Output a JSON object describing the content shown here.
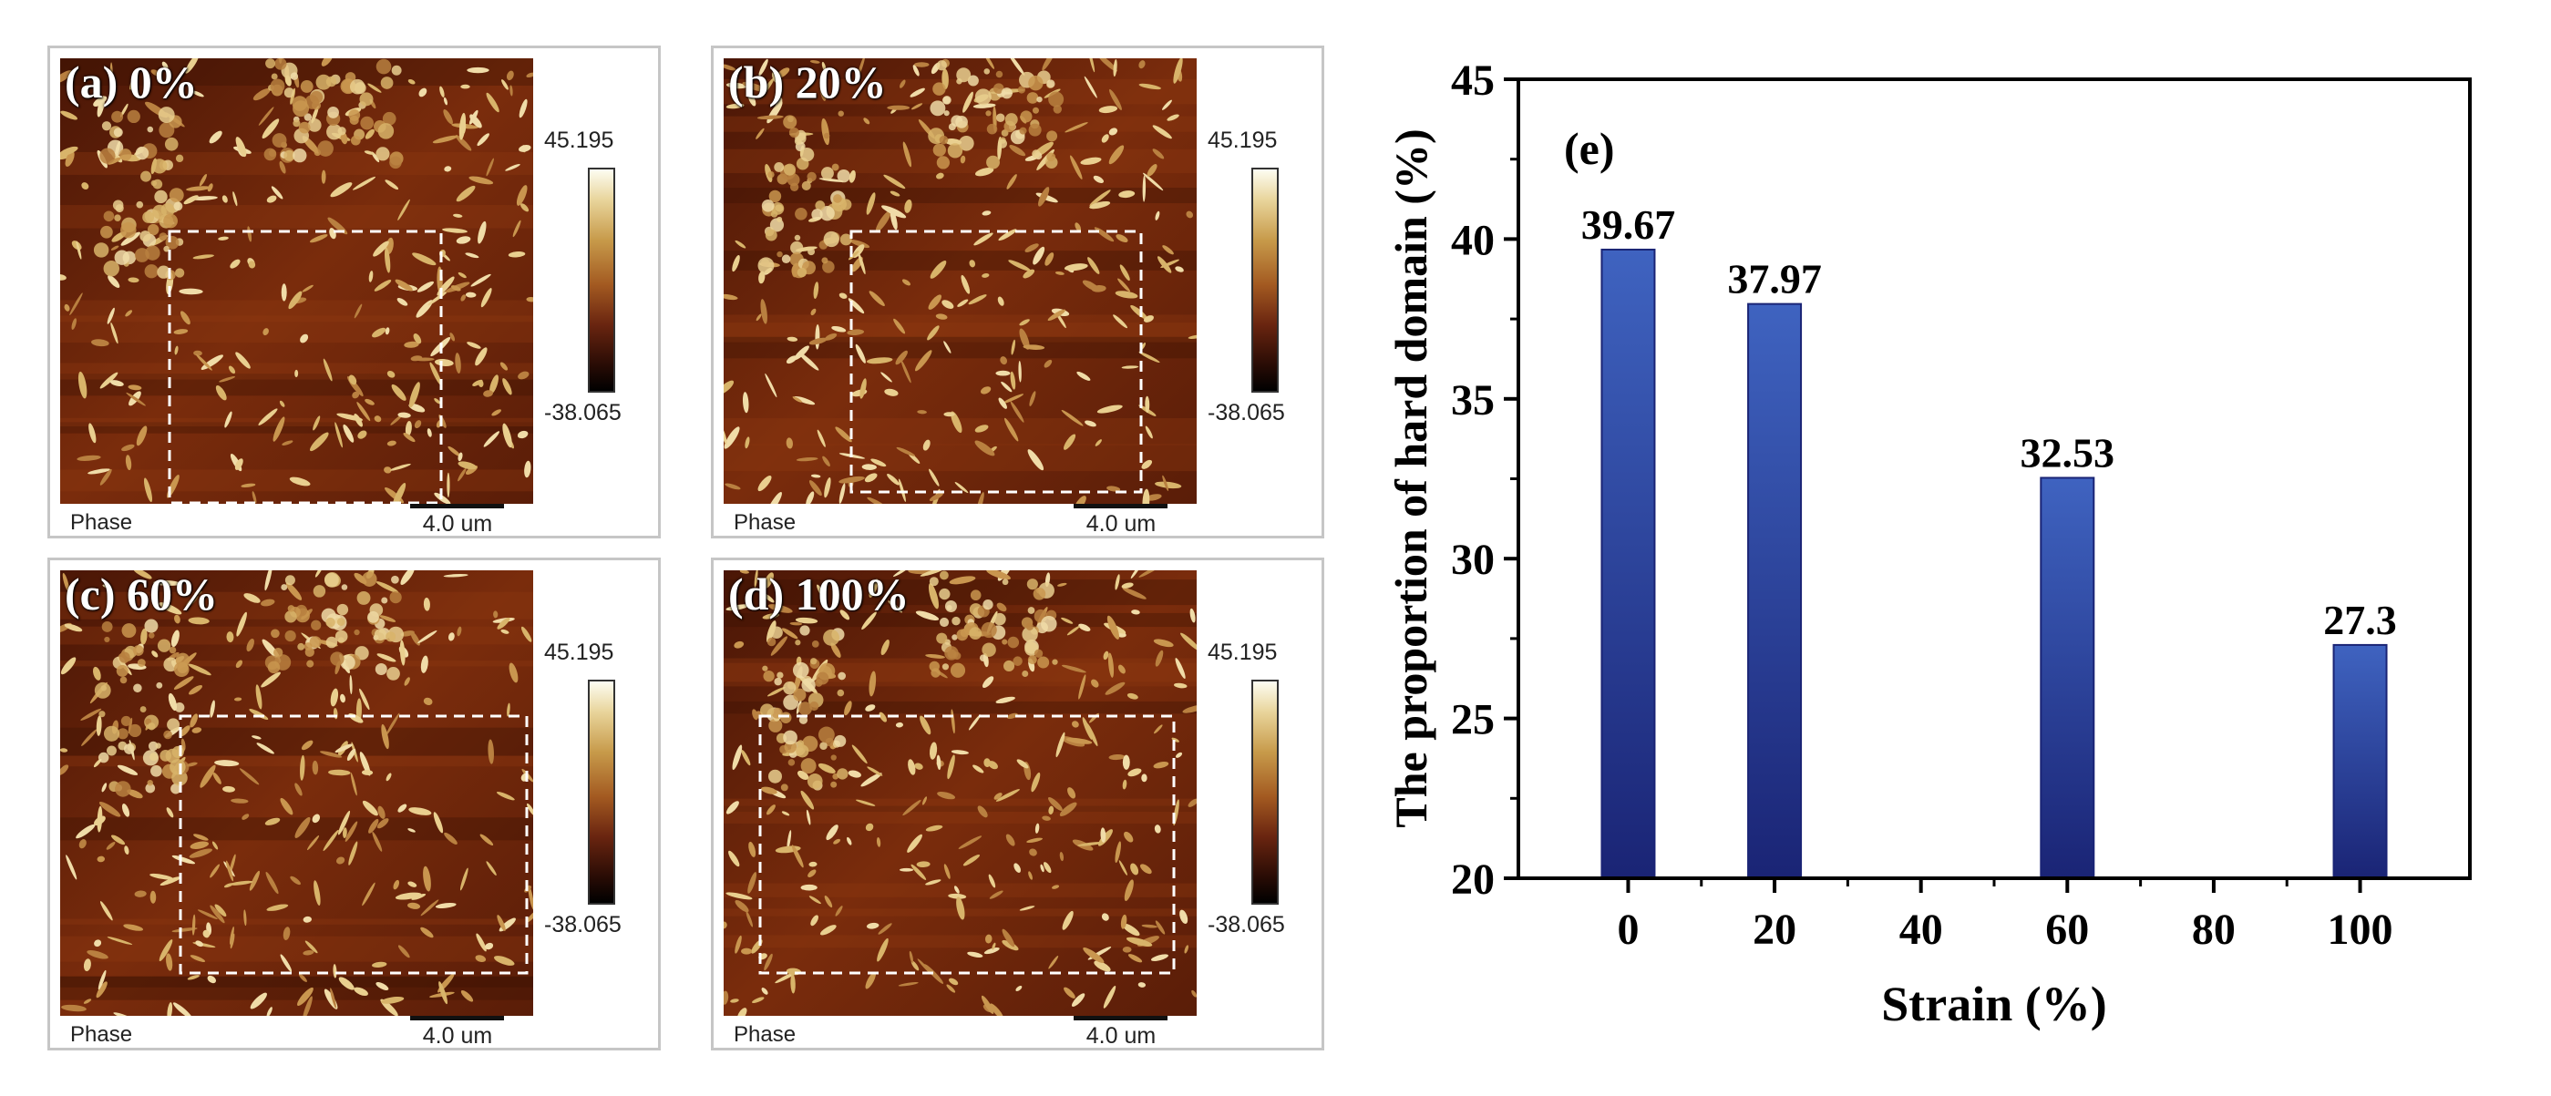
{
  "colors": {
    "bar_top": "#3f63c0",
    "bar_bottom": "#1a2475",
    "frame": "#000000",
    "panel_border": "#c6c6c6"
  },
  "afm_panels": [
    {
      "label": "(a) 0%",
      "colorbar_max": "45.195",
      "colorbar_min": "-38.065",
      "mode": "Phase",
      "scale": "4.0 um"
    },
    {
      "label": "(b) 20%",
      "colorbar_max": "45.195",
      "colorbar_min": "-38.065",
      "mode": "Phase",
      "scale": "4.0 um"
    },
    {
      "label": "(c) 60%",
      "colorbar_max": "45.195",
      "colorbar_min": "-38.065",
      "mode": "Phase",
      "scale": "4.0 um"
    },
    {
      "label": "(d) 100%",
      "colorbar_max": "45.195",
      "colorbar_min": "-38.065",
      "mode": "Phase",
      "scale": "4.0 um"
    }
  ],
  "chart_data": {
    "type": "bar",
    "panel_label": "(e)",
    "title": "",
    "xlabel": "Strain (%)",
    "ylabel": "The proportion of hard domain (%)",
    "x_ticks": [
      "0",
      "20",
      "40",
      "60",
      "80",
      "100"
    ],
    "y_ticks": [
      "20",
      "25",
      "30",
      "35",
      "40",
      "45"
    ],
    "ylim": [
      20,
      45
    ],
    "xlim": [
      -15,
      115
    ],
    "grid": false,
    "bars": [
      {
        "x": 0,
        "value": 39.67,
        "label": "39.67"
      },
      {
        "x": 20,
        "value": 37.97,
        "label": "37.97"
      },
      {
        "x": 60,
        "value": 32.53,
        "label": "32.53"
      },
      {
        "x": 100,
        "value": 27.3,
        "label": "27.3"
      }
    ]
  }
}
